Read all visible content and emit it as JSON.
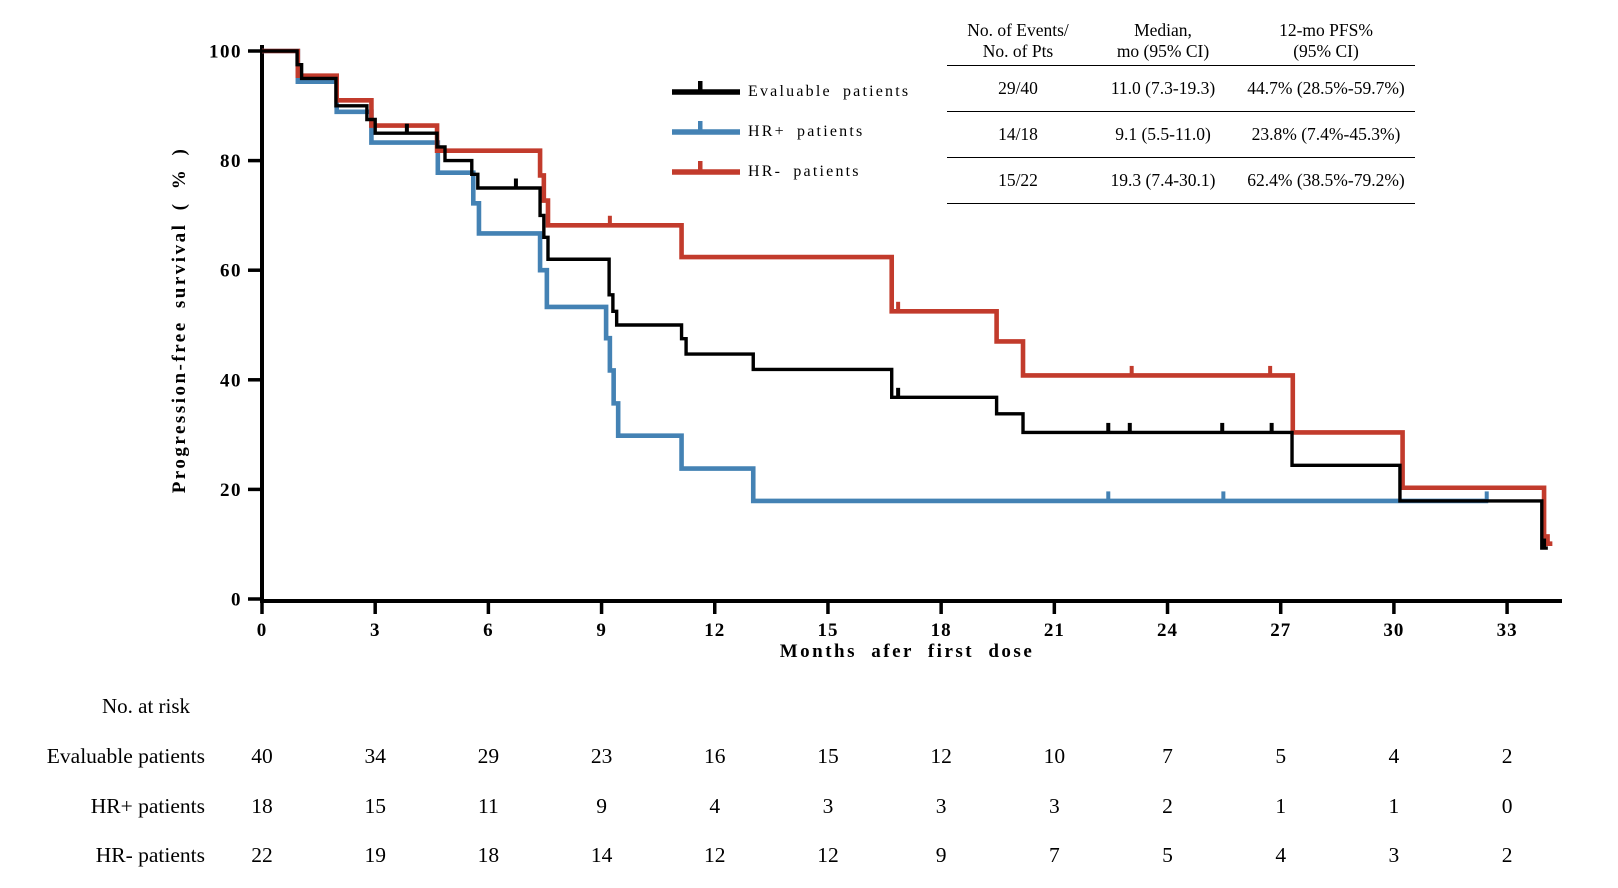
{
  "chart_data": {
    "type": "line",
    "subtype": "kaplan-meier-step",
    "xlabel": "Months afer first dose",
    "ylabel": "Progression-free survival ( % )",
    "xlim": [
      0,
      34.5
    ],
    "ylim": [
      0,
      100
    ],
    "x_ticks": [
      0,
      3,
      6,
      9,
      12,
      15,
      18,
      21,
      24,
      27,
      30,
      33
    ],
    "y_ticks": [
      0,
      20,
      40,
      60,
      80,
      100
    ],
    "grid": "off",
    "legend_position": "inside-upper-left-of-stats-table",
    "series": [
      {
        "id": "evaluable",
        "name": "Evaluable patients",
        "color": "#000000",
        "width": 3.4,
        "steps": [
          [
            0,
            100
          ],
          [
            0.93,
            97.5
          ],
          [
            1.05,
            95
          ],
          [
            1.96,
            90
          ],
          [
            2.78,
            87.5
          ],
          [
            3.0,
            85
          ],
          [
            4.64,
            82.5
          ],
          [
            4.85,
            80
          ],
          [
            5.56,
            77.5
          ],
          [
            5.72,
            75
          ],
          [
            7.37,
            70
          ],
          [
            7.47,
            66
          ],
          [
            7.58,
            62
          ],
          [
            9.2,
            55.5
          ],
          [
            9.3,
            52.5
          ],
          [
            9.4,
            50
          ],
          [
            11.12,
            47.5
          ],
          [
            11.24,
            44.7
          ],
          [
            13.02,
            41.9
          ],
          [
            16.69,
            36.8
          ],
          [
            19.47,
            33.8
          ],
          [
            20.17,
            30.4
          ],
          [
            27.3,
            24.4
          ],
          [
            30.16,
            17.9
          ],
          [
            33.92,
            9.3
          ]
        ],
        "end": 34.08,
        "censors": [
          [
            3.84,
            85
          ],
          [
            6.73,
            75
          ],
          [
            16.86,
            36.8
          ],
          [
            22.43,
            30.4
          ],
          [
            23.0,
            30.4
          ],
          [
            25.45,
            30.4
          ],
          [
            26.76,
            30.4
          ],
          [
            33.98,
            9.3
          ]
        ]
      },
      {
        "id": "hr-plus",
        "name": "HR+ patients",
        "color": "#4482b4",
        "width": 4.6,
        "steps": [
          [
            0,
            100
          ],
          [
            0.95,
            94.4
          ],
          [
            1.98,
            88.9
          ],
          [
            2.9,
            83.3
          ],
          [
            4.66,
            77.8
          ],
          [
            5.6,
            72.2
          ],
          [
            5.75,
            66.7
          ],
          [
            7.37,
            60
          ],
          [
            7.55,
            53.3
          ],
          [
            9.12,
            47.6
          ],
          [
            9.22,
            41.7
          ],
          [
            9.32,
            35.7
          ],
          [
            9.44,
            29.8
          ],
          [
            11.12,
            23.8
          ],
          [
            13.02,
            17.9
          ]
        ],
        "end": 32.5,
        "censors": [
          [
            22.43,
            17.9
          ],
          [
            25.48,
            17.9
          ],
          [
            32.46,
            17.9
          ]
        ]
      },
      {
        "id": "hr-minus",
        "name": "HR- patients",
        "color": "#c23b2c",
        "width": 4.6,
        "steps": [
          [
            0,
            100
          ],
          [
            0.95,
            95.5
          ],
          [
            1.98,
            91
          ],
          [
            2.9,
            86.4
          ],
          [
            4.64,
            81.8
          ],
          [
            7.37,
            77.3
          ],
          [
            7.47,
            72.7
          ],
          [
            7.58,
            68.2
          ],
          [
            11.12,
            62.4
          ],
          [
            16.69,
            52.5
          ],
          [
            19.47,
            47
          ],
          [
            20.17,
            40.8
          ],
          [
            27.32,
            30.4
          ],
          [
            30.23,
            20.3
          ],
          [
            33.98,
            10.1
          ]
        ],
        "end": 34.2,
        "censors": [
          [
            9.22,
            68.2
          ],
          [
            16.86,
            52.5
          ],
          [
            23.05,
            40.8
          ],
          [
            26.72,
            40.8
          ],
          [
            34.08,
            10.1
          ]
        ]
      }
    ]
  },
  "stats_table": {
    "headers": [
      {
        "line1": "No. of Events/",
        "line2": "No. of Pts"
      },
      {
        "line1": "Median,",
        "line2": "mo (95% CI)"
      },
      {
        "line1": "12-mo PFS%",
        "line2": "(95% CI)"
      }
    ],
    "rows": [
      {
        "cells": [
          "29/40",
          "11.0 (7.3-19.3)",
          "44.7% (28.5%-59.7%)"
        ]
      },
      {
        "cells": [
          "14/18",
          "9.1 (5.5-11.0)",
          "23.8% (7.4%-45.3%)"
        ]
      },
      {
        "cells": [
          "15/22",
          "19.3 (7.4-30.1)",
          "62.4% (38.5%-79.2%)"
        ]
      }
    ]
  },
  "at_risk": {
    "title": "No. at risk",
    "time_points": [
      0,
      3,
      6,
      9,
      12,
      15,
      18,
      21,
      24,
      27,
      30,
      33
    ],
    "rows": [
      {
        "label": "Evaluable patients",
        "counts": [
          40,
          34,
          29,
          23,
          16,
          15,
          12,
          10,
          7,
          5,
          4,
          2
        ]
      },
      {
        "label": "HR+ patients",
        "counts": [
          18,
          15,
          11,
          9,
          4,
          3,
          3,
          3,
          2,
          1,
          1,
          0
        ]
      },
      {
        "label": "HR- patients",
        "counts": [
          22,
          19,
          18,
          14,
          12,
          12,
          9,
          7,
          5,
          4,
          3,
          2
        ]
      }
    ]
  }
}
